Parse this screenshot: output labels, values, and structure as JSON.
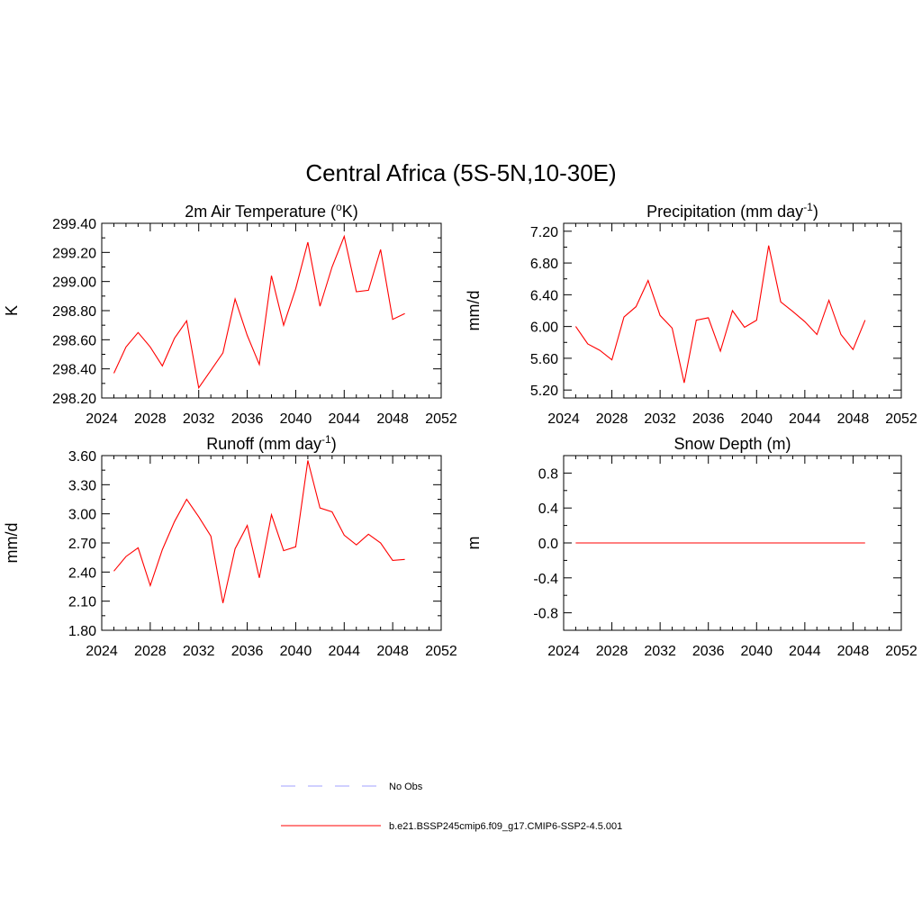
{
  "title": "Central Africa (5S-5N,10-30E)",
  "legend": [
    {
      "label": "No Obs",
      "color": "#a0a0ff",
      "dash": true
    },
    {
      "label": "b.e21.BSSP245cmip6.f09_g17.CMIP6-SSP2-4.5.001",
      "color": "#ff0000",
      "dash": false
    }
  ],
  "chart_data": [
    {
      "type": "line",
      "title": "2m Air Temperature (°K)",
      "title_parts": [
        "2m Air Temperature (",
        "o",
        "K)"
      ],
      "ylabel": "K",
      "xlim": [
        2024,
        2052
      ],
      "ylim": [
        298.2,
        299.4
      ],
      "xticks": [
        "2024",
        "2028",
        "2032",
        "2036",
        "2040",
        "2044",
        "2048",
        "2052"
      ],
      "yticks": [
        "298.20",
        "298.40",
        "298.60",
        "298.80",
        "299.00",
        "299.20",
        "299.40"
      ],
      "series": [
        {
          "color": "#ff0000",
          "x": [
            2025,
            2026,
            2027,
            2028,
            2029,
            2030,
            2031,
            2032,
            2033,
            2034,
            2035,
            2036,
            2037,
            2038,
            2039,
            2040,
            2041,
            2042,
            2043,
            2044,
            2045,
            2046,
            2047,
            2048,
            2049
          ],
          "values": [
            298.37,
            298.55,
            298.65,
            298.55,
            298.42,
            298.61,
            298.73,
            298.27,
            298.39,
            298.51,
            298.88,
            298.63,
            298.43,
            299.04,
            298.7,
            298.95,
            299.27,
            298.83,
            299.1,
            299.31,
            298.93,
            298.94,
            299.22,
            298.74,
            298.78
          ]
        }
      ]
    },
    {
      "type": "line",
      "title": "Precipitation (mm day-1)",
      "title_parts": [
        "Precipitation (mm day",
        "-1",
        ")"
      ],
      "ylabel": "mm/d",
      "xlim": [
        2024,
        2052
      ],
      "ylim": [
        5.1,
        7.3
      ],
      "xticks": [
        "2024",
        "2028",
        "2032",
        "2036",
        "2040",
        "2044",
        "2048",
        "2052"
      ],
      "yticks": [
        "5.20",
        "5.60",
        "6.00",
        "6.40",
        "6.80",
        "7.20"
      ],
      "series": [
        {
          "color": "#ff0000",
          "x": [
            2025,
            2026,
            2027,
            2028,
            2029,
            2030,
            2031,
            2032,
            2033,
            2034,
            2035,
            2036,
            2037,
            2038,
            2039,
            2040,
            2041,
            2042,
            2043,
            2044,
            2045,
            2046,
            2047,
            2048,
            2049
          ],
          "values": [
            6.0,
            5.78,
            5.7,
            5.58,
            6.12,
            6.25,
            6.58,
            6.14,
            5.98,
            5.29,
            6.08,
            6.11,
            5.69,
            6.2,
            5.99,
            6.08,
            7.02,
            6.31,
            6.19,
            6.06,
            5.9,
            6.33,
            5.9,
            5.71,
            6.08
          ]
        }
      ]
    },
    {
      "type": "line",
      "title": "Runoff (mm day-1)",
      "title_parts": [
        "Runoff (mm day",
        "-1",
        ")"
      ],
      "ylabel": "mm/d",
      "xlim": [
        2024,
        2052
      ],
      "ylim": [
        1.8,
        3.6
      ],
      "xticks": [
        "2024",
        "2028",
        "2032",
        "2036",
        "2040",
        "2044",
        "2048",
        "2052"
      ],
      "yticks": [
        "1.80",
        "2.10",
        "2.40",
        "2.70",
        "3.00",
        "3.30",
        "3.60"
      ],
      "series": [
        {
          "color": "#ff0000",
          "x": [
            2025,
            2026,
            2027,
            2028,
            2029,
            2030,
            2031,
            2032,
            2033,
            2034,
            2035,
            2036,
            2037,
            2038,
            2039,
            2040,
            2041,
            2042,
            2043,
            2044,
            2045,
            2046,
            2047,
            2048,
            2049
          ],
          "values": [
            2.41,
            2.56,
            2.65,
            2.26,
            2.63,
            2.92,
            3.15,
            2.97,
            2.77,
            2.08,
            2.64,
            2.88,
            2.34,
            2.99,
            2.62,
            2.66,
            3.55,
            3.06,
            3.02,
            2.78,
            2.68,
            2.79,
            2.7,
            2.52,
            2.53
          ]
        }
      ]
    },
    {
      "type": "line",
      "title": "Snow Depth (m)",
      "title_parts": [
        "Snow Depth (m)",
        "",
        ""
      ],
      "ylabel": "m",
      "xlim": [
        2024,
        2052
      ],
      "ylim": [
        -1.0,
        1.0
      ],
      "xticks": [
        "2024",
        "2028",
        "2032",
        "2036",
        "2040",
        "2044",
        "2048",
        "2052"
      ],
      "yticks": [
        "-0.8",
        "-0.4",
        "0.0",
        "0.4",
        "0.8"
      ],
      "series": [
        {
          "color": "#ff0000",
          "x": [
            2025,
            2026,
            2027,
            2028,
            2029,
            2030,
            2031,
            2032,
            2033,
            2034,
            2035,
            2036,
            2037,
            2038,
            2039,
            2040,
            2041,
            2042,
            2043,
            2044,
            2045,
            2046,
            2047,
            2048,
            2049
          ],
          "values": [
            0,
            0,
            0,
            0,
            0,
            0,
            0,
            0,
            0,
            0,
            0,
            0,
            0,
            0,
            0,
            0,
            0,
            0,
            0,
            0,
            0,
            0,
            0,
            0,
            0
          ]
        }
      ]
    }
  ]
}
